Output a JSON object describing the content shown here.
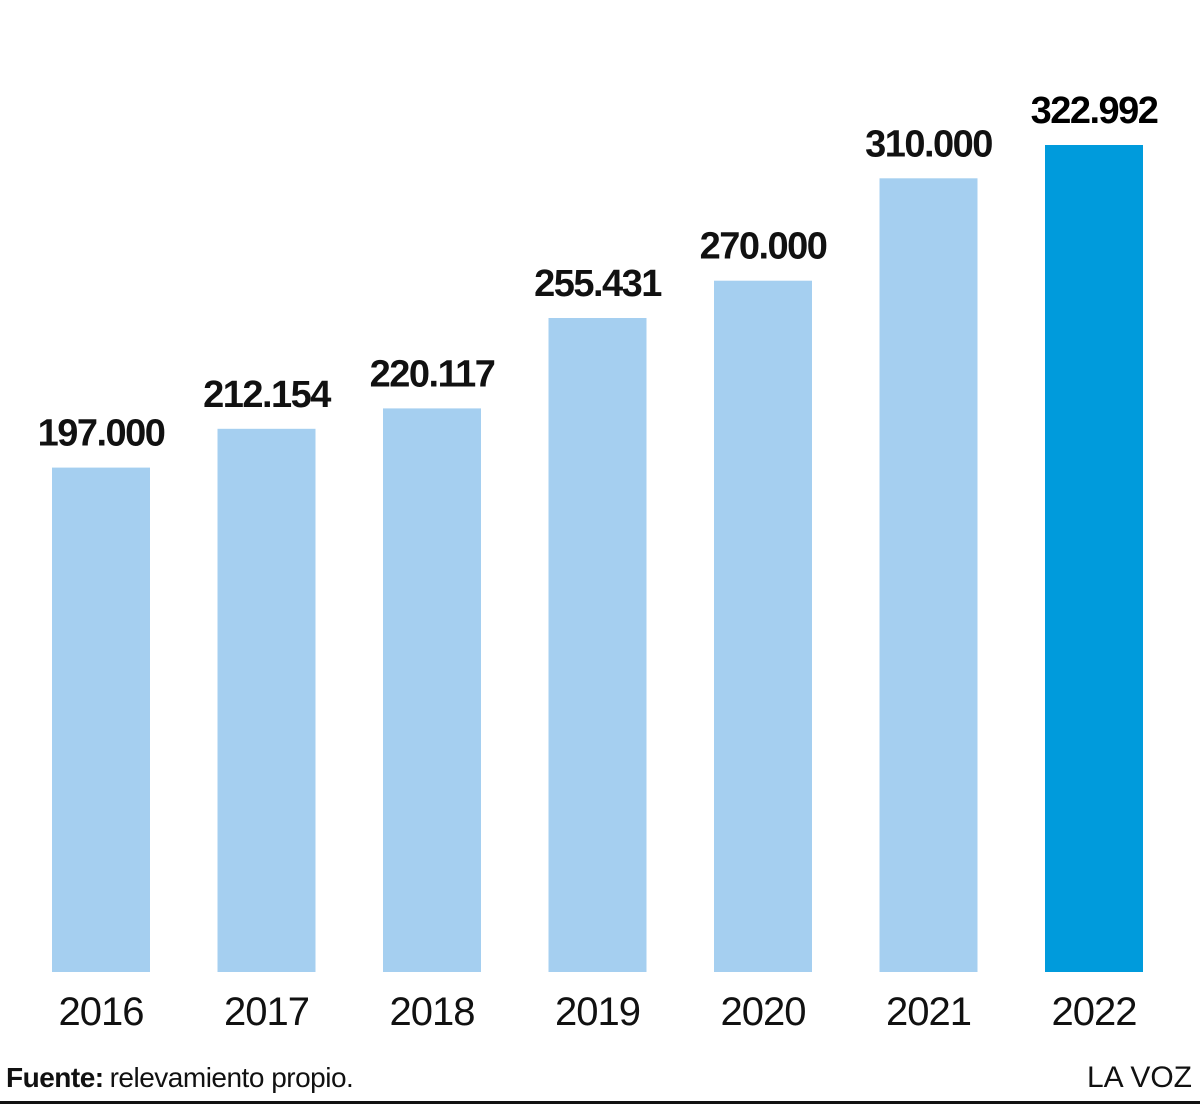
{
  "chart_data": {
    "type": "bar",
    "categories": [
      "2016",
      "2017",
      "2018",
      "2019",
      "2020",
      "2021",
      "2022"
    ],
    "values": [
      197000,
      212154,
      220117,
      255431,
      270000,
      310000,
      322992
    ],
    "value_labels": [
      "197.000",
      "212.154",
      "220.117",
      "255.431",
      "270.000",
      "310.000",
      "322.992"
    ],
    "title": "",
    "xlabel": "",
    "ylabel": "",
    "ylim": [
      0,
      322992
    ],
    "grid": false,
    "legend": "none",
    "highlight_index": 6,
    "colors": {
      "bar": "#a5cff0",
      "highlight": "#009bdc"
    }
  },
  "footer": {
    "source_label": "Fuente:",
    "source_text": "relevamiento propio.",
    "brand": "LA VOZ"
  }
}
